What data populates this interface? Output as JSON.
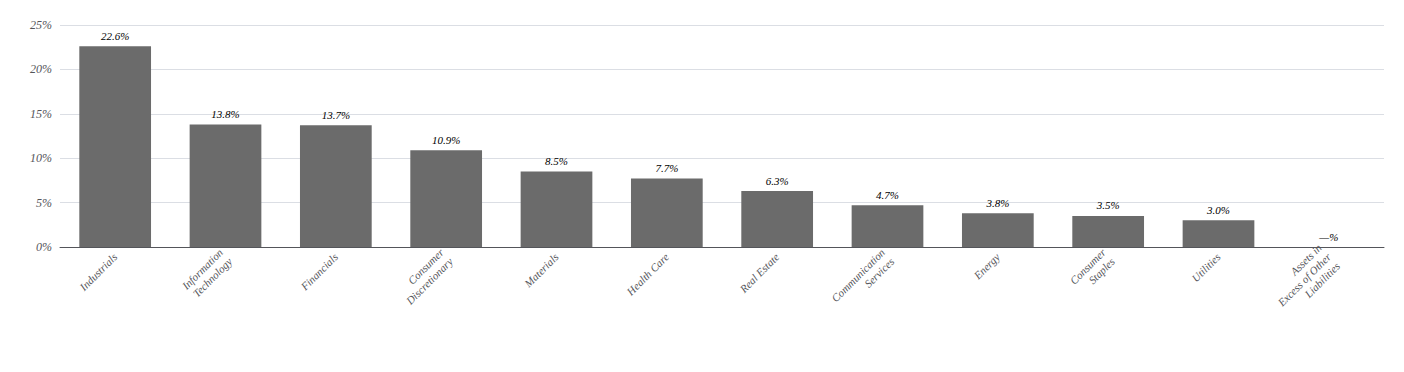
{
  "chart_data": {
    "type": "bar",
    "categories": [
      "Industrials",
      "Information\nTechnology",
      "Financials",
      "Consumer\nDiscretionary",
      "Materials",
      "Health Care",
      "Real Estate",
      "Communication\nServices",
      "Energy",
      "Consumer\nStaples",
      "Utilities",
      "Assets in\nExcess of Other\nLiabilities"
    ],
    "values": [
      22.6,
      13.8,
      13.7,
      10.9,
      8.5,
      7.7,
      6.3,
      4.7,
      3.8,
      3.5,
      3.0,
      0.0
    ],
    "value_labels": [
      "22.6%",
      "13.8%",
      "13.7%",
      "10.9%",
      "8.5%",
      "7.7%",
      "6.3%",
      "4.7%",
      "3.8%",
      "3.5%",
      "3.0%",
      "—%"
    ],
    "data_labels": true,
    "color": "#6b6b6b",
    "ylim": [
      0,
      25
    ],
    "yticks": [
      {
        "value": 0,
        "label": "0%"
      },
      {
        "value": 5,
        "label": "5%"
      },
      {
        "value": 10,
        "label": "10%"
      },
      {
        "value": 15,
        "label": "15%"
      },
      {
        "value": 20,
        "label": "20%"
      },
      {
        "value": 25,
        "label": "25%"
      }
    ],
    "grid": true
  }
}
